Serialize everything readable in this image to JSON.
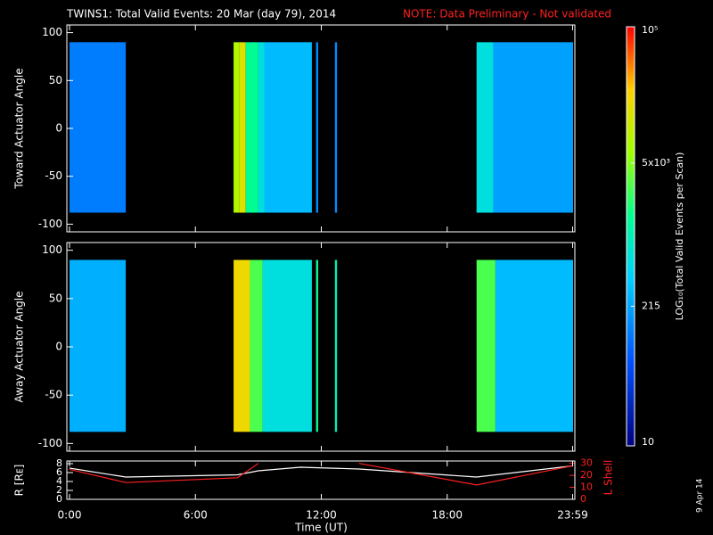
{
  "title": "TWINS1: Total Valid Events: 20 Mar (day  79), 2014",
  "note": "NOTE: Data Preliminary - Not validated",
  "date_stamp": "9 Apr 14",
  "colorbar": {
    "label": "LOG₁₀(Total Valid Events per Scan)",
    "log": true,
    "clim": [
      10,
      100000
    ],
    "ticks": [
      10,
      215,
      {
        "value": 5000,
        "label": "5x10³"
      },
      {
        "value": 100000,
        "label": "10⁵"
      }
    ]
  },
  "chart_data": [
    {
      "type": "heatmap",
      "ylabel": "Toward Actuator Angle",
      "xlim": [
        0,
        24
      ],
      "ylim": [
        -108,
        108
      ],
      "yticks": [
        -100,
        -50,
        0,
        50,
        100
      ],
      "angle_range": [
        -88,
        90
      ],
      "blocks": [
        {
          "start": 0,
          "end": 2.68,
          "value": 120
        },
        {
          "start": 7.82,
          "end": 8.1,
          "value": 8000
        },
        {
          "start": 8.1,
          "end": 8.4,
          "value": 15000
        },
        {
          "start": 8.4,
          "end": 9.0,
          "value": 1500
        },
        {
          "start": 9.0,
          "end": 9.3,
          "value": 600
        },
        {
          "start": 9.3,
          "end": 11.55,
          "value": 300
        },
        {
          "start": 11.75,
          "end": 11.85,
          "value": 150
        },
        {
          "start": 12.65,
          "end": 12.75,
          "value": 150
        },
        {
          "start": 19.4,
          "end": 20.2,
          "value": 600
        },
        {
          "start": 20.2,
          "end": 24,
          "value": 200
        }
      ]
    },
    {
      "type": "heatmap",
      "ylabel": "Away Actuator Angle",
      "xlim": [
        0,
        24
      ],
      "ylim": [
        -108,
        108
      ],
      "yticks": [
        -100,
        -50,
        0,
        50,
        100
      ],
      "angle_range": [
        -88,
        90
      ],
      "blocks": [
        {
          "start": 0,
          "end": 2.68,
          "value": 250
        },
        {
          "start": 7.82,
          "end": 8.6,
          "value": 20000
        },
        {
          "start": 8.6,
          "end": 9.2,
          "value": 3000
        },
        {
          "start": 9.2,
          "end": 11.55,
          "value": 600
        },
        {
          "start": 11.75,
          "end": 11.85,
          "value": 1500
        },
        {
          "start": 12.65,
          "end": 12.75,
          "value": 1000
        },
        {
          "start": 19.4,
          "end": 20.3,
          "value": 3000
        },
        {
          "start": 20.3,
          "end": 24,
          "value": 300
        }
      ]
    },
    {
      "type": "line",
      "xlabel": "Time (UT)",
      "ylabel": "R [Rᴇ]",
      "y2label": "L Shell",
      "xlim": [
        0,
        24
      ],
      "ylim": [
        0,
        8.6
      ],
      "y2lim": [
        0,
        32
      ],
      "xticks": [
        {
          "value": 0,
          "label": "0:00"
        },
        {
          "value": 6,
          "label": "6:00"
        },
        {
          "value": 12,
          "label": "12:00"
        },
        {
          "value": 18,
          "label": "18:00"
        },
        {
          "value": 23.98,
          "label": "23:59"
        }
      ],
      "yticks": [
        0,
        2,
        4,
        6,
        8
      ],
      "y2ticks": [
        0,
        10,
        20,
        30
      ],
      "x": [
        0,
        2.68,
        8.0,
        9.0,
        11.0,
        13.8,
        19.4,
        23.98
      ],
      "series": [
        {
          "name": "R",
          "color": "#ffffff",
          "values": [
            7,
            5,
            5.5,
            6.4,
            7.2,
            6.8,
            5,
            7.5
          ]
        },
        {
          "name": "L Shell",
          "color": "#ff2020",
          "axis": "y2",
          "values": [
            25,
            14,
            18,
            30,
            null,
            30,
            12,
            28
          ]
        }
      ]
    }
  ]
}
